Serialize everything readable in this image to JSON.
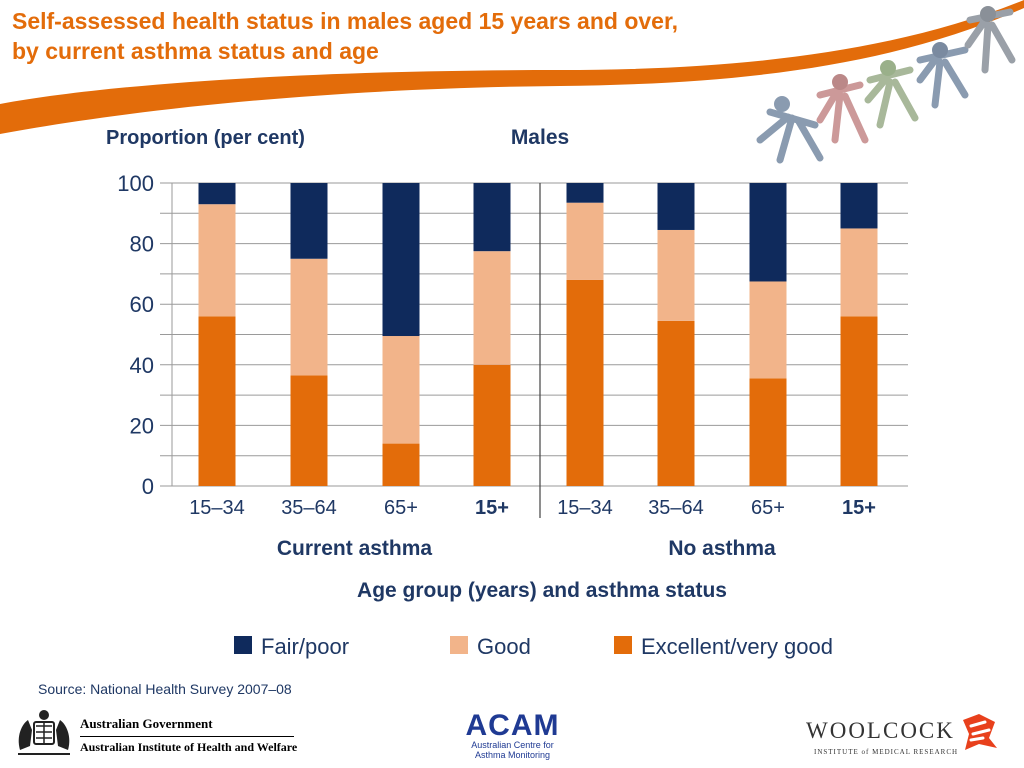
{
  "slide": {
    "title_line1": "Self-assessed health status in males aged 15 years and over,",
    "title_line2": "by current asthma status and age",
    "source": "Source: National Health Survey 2007–08"
  },
  "logos": {
    "aus_gov": "Australian Government",
    "aihw": "Australian Institute of Health and Welfare",
    "acam": "ACAM",
    "acam_sub1": "Australian Centre for",
    "acam_sub2": "Asthma Monitoring",
    "woolcock": "WOOLCOCK",
    "woolcock_sub": "INSTITUTE of MEDICAL RESEARCH"
  },
  "colors": {
    "accent": "#e36c0a",
    "excellent": "#e36c0a",
    "good": "#f2b48a",
    "fair": "#0f2a5c",
    "text_dark": "#1f3864"
  },
  "chart_data": {
    "type": "bar",
    "stacked": true,
    "title": "Males",
    "ylabel": "Proportion (per cent)",
    "xlabel": "Age group (years) and asthma status",
    "ylim": [
      0,
      100
    ],
    "yticks": [
      0,
      20,
      40,
      60,
      80,
      100
    ],
    "groups": [
      "Current asthma",
      "No asthma"
    ],
    "categories": [
      "15–34",
      "35–64",
      "65+",
      "15+",
      "15–34",
      "35–64",
      "65+",
      "15+"
    ],
    "category_group": [
      0,
      0,
      0,
      0,
      1,
      1,
      1,
      1
    ],
    "category_bold": [
      false,
      false,
      false,
      true,
      false,
      false,
      false,
      true
    ],
    "series": [
      {
        "name": "Excellent/very good",
        "color": "#e36c0a",
        "values": [
          56,
          36.5,
          14,
          40,
          68,
          54.5,
          35.5,
          56
        ]
      },
      {
        "name": "Good",
        "color": "#f2b48a",
        "values": [
          37,
          38.5,
          35.5,
          37.5,
          25.5,
          30,
          32,
          29
        ]
      },
      {
        "name": "Fair/poor",
        "color": "#0f2a5c",
        "values": [
          7,
          25,
          50.5,
          22.5,
          6.5,
          15.5,
          32.5,
          15
        ]
      }
    ],
    "legend_order": [
      "Fair/poor",
      "Good",
      "Excellent/very good"
    ],
    "legend": "bottom",
    "grid": true
  }
}
